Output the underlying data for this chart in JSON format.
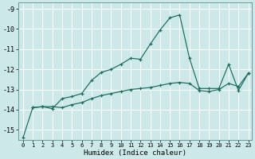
{
  "xlabel": "Humidex (Indice chaleur)",
  "bg_color": "#cce8e8",
  "grid_color": "#b0d4d4",
  "line_color": "#1a6b5a",
  "xlim": [
    -0.5,
    23.4
  ],
  "ylim": [
    -15.5,
    -8.7
  ],
  "yticks": [
    -15,
    -14,
    -13,
    -12,
    -11,
    -10,
    -9
  ],
  "xticks": [
    0,
    1,
    2,
    3,
    4,
    5,
    6,
    7,
    8,
    9,
    10,
    11,
    12,
    13,
    14,
    15,
    16,
    17,
    18,
    19,
    20,
    21,
    22,
    23
  ],
  "line1_x": [
    0,
    1,
    2,
    3,
    4,
    5,
    6,
    7,
    8,
    9,
    10,
    11,
    12,
    13,
    14,
    15,
    16,
    17,
    18,
    19,
    20,
    21,
    22,
    23
  ],
  "line1_y": [
    -15.4,
    -13.9,
    -13.85,
    -13.95,
    -13.45,
    -13.35,
    -13.2,
    -12.55,
    -12.15,
    -12.0,
    -11.75,
    -11.45,
    -11.5,
    -10.75,
    -10.05,
    -9.45,
    -9.3,
    -11.45,
    -12.95,
    -12.95,
    -12.95,
    -11.75,
    -13.05,
    -12.2
  ],
  "line2_x": [
    1,
    2,
    3,
    4,
    5,
    6,
    7,
    8,
    9,
    10,
    11,
    12,
    13,
    14,
    15,
    16,
    17,
    18,
    19,
    20,
    21,
    22,
    23
  ],
  "line2_y": [
    -13.9,
    -13.85,
    -13.85,
    -13.9,
    -13.75,
    -13.65,
    -13.45,
    -13.3,
    -13.2,
    -13.1,
    -13.0,
    -12.95,
    -12.9,
    -12.8,
    -12.7,
    -12.65,
    -12.7,
    -13.05,
    -13.1,
    -13.0,
    -12.7,
    -12.85,
    -12.2
  ]
}
